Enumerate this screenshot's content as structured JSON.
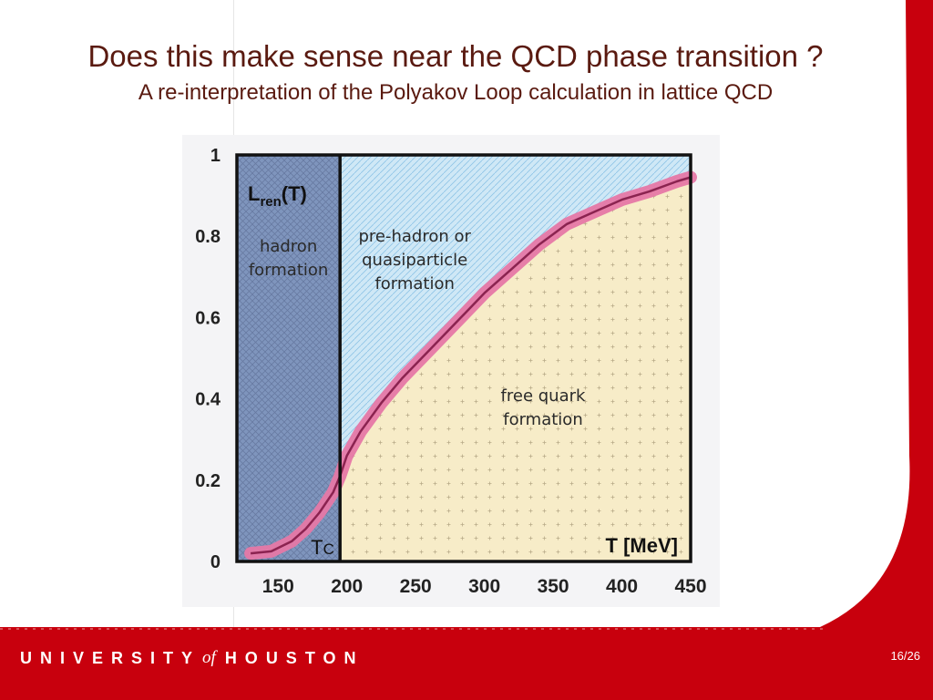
{
  "slide": {
    "title": "Does this make sense near the QCD phase transition ?",
    "subtitle": "A re-interpretation of the Polyakov Loop calculation in lattice QCD",
    "footer": {
      "brand_left": "UNIVERSITY",
      "brand_of": "of",
      "brand_right": "HOUSTON",
      "page": "16/26"
    },
    "colors": {
      "accent_red": "#c8000d",
      "title_brown": "#5a1a10"
    }
  },
  "chart_data": {
    "type": "line",
    "title": "",
    "xlabel": "T [MeV]",
    "ylabel": "",
    "curve_label": "L",
    "curve_label_sub": "ren",
    "curve_label_arg": "(T)",
    "xlim": [
      120,
      450
    ],
    "ylim": [
      0,
      1
    ],
    "x_ticks": [
      "150",
      "200",
      "250",
      "300",
      "350",
      "400",
      "450"
    ],
    "x_tick_values": [
      150,
      200,
      250,
      300,
      350,
      400,
      450
    ],
    "y_ticks": [
      "0",
      "0.2",
      "0.4",
      "0.6",
      "0.8",
      "1"
    ],
    "y_tick_values": [
      0,
      0.2,
      0.4,
      0.6,
      0.8,
      1
    ],
    "tc": {
      "label_main": "T",
      "label_sub": "C",
      "value": 195
    },
    "series": [
      {
        "x": [
          130,
          145,
          160,
          170,
          180,
          190,
          195,
          200,
          210,
          225,
          240,
          260,
          280,
          300,
          320,
          340,
          360,
          380,
          400,
          420,
          440,
          450
        ],
        "y": [
          0.02,
          0.025,
          0.05,
          0.08,
          0.12,
          0.17,
          0.21,
          0.26,
          0.32,
          0.39,
          0.45,
          0.52,
          0.59,
          0.66,
          0.72,
          0.78,
          0.83,
          0.86,
          0.89,
          0.91,
          0.935,
          0.945
        ]
      }
    ],
    "regions": [
      {
        "label_lines": [
          "hadron",
          "formation"
        ],
        "fill": "#7f95bd"
      },
      {
        "label_lines": [
          "pre-hadron or",
          "quasiparticle",
          "formation"
        ],
        "fill": "#cfe8f6"
      },
      {
        "label_lines": [
          "free quark",
          "formation"
        ],
        "fill": "#f7ecc8"
      }
    ],
    "curve_colors": {
      "band": "#e678a6",
      "line": "#8b2350"
    },
    "grid": false,
    "legend": "none"
  }
}
